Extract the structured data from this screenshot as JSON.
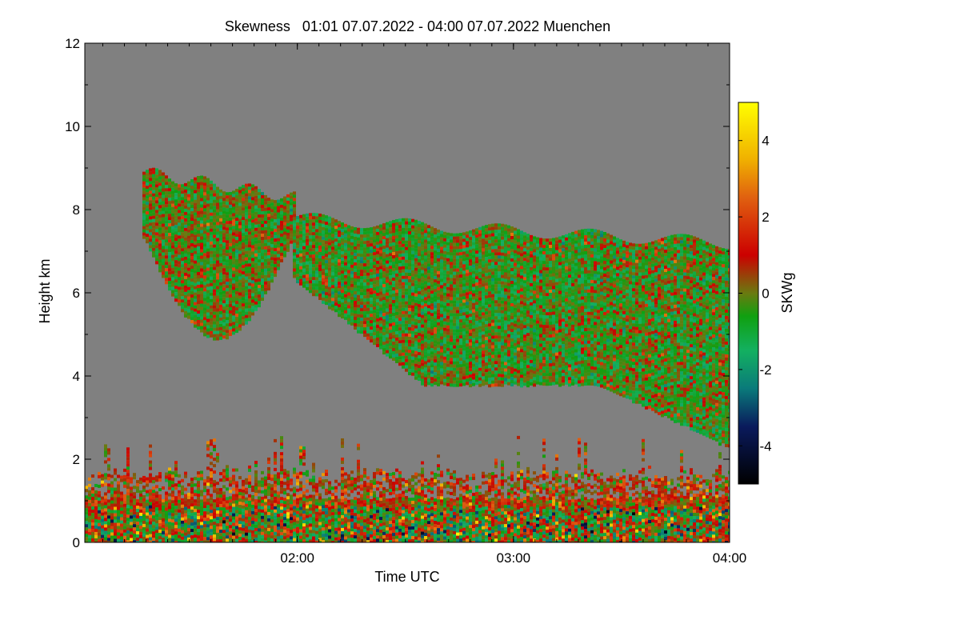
{
  "chart_data": {
    "type": "heatmap",
    "title": "Skewness   01:01 07.07.2022 - 04:00 07.07.2022 Muenchen",
    "xlabel": "Time UTC",
    "ylabel": "Height km",
    "x_range_hours": [
      1.0167,
      4.0
    ],
    "x_ticks": [
      {
        "value": 2.0,
        "label": "02:00"
      },
      {
        "value": 3.0,
        "label": "03:00"
      },
      {
        "value": 4.0,
        "label": "04:00"
      }
    ],
    "ylim": [
      0,
      12
    ],
    "y_ticks": [
      0,
      2,
      4,
      6,
      8,
      10,
      12
    ],
    "colorbar": {
      "label": "SKWg",
      "range": [
        -5,
        5
      ],
      "ticks": [
        -4,
        -2,
        0,
        2,
        4
      ],
      "stops": [
        {
          "value": -5,
          "color": "#000000"
        },
        {
          "value": -3.5,
          "color": "#0a1a5c"
        },
        {
          "value": -2.5,
          "color": "#0a7a7a"
        },
        {
          "value": -1.5,
          "color": "#13b060"
        },
        {
          "value": -0.6,
          "color": "#10a010"
        },
        {
          "value": 0,
          "color": "#6a7a10"
        },
        {
          "value": 1,
          "color": "#cc0000"
        },
        {
          "value": 2.5,
          "color": "#e06010"
        },
        {
          "value": 3.5,
          "color": "#f0b000"
        },
        {
          "value": 5,
          "color": "#ffff00"
        }
      ]
    },
    "background_color": "#808080",
    "regions": [
      {
        "name": "upper-cloud-left",
        "time_start": 1.28,
        "time_end": 1.98,
        "base_km": 5.2,
        "top_km": 8.9,
        "mean_skewness": -0.3
      },
      {
        "name": "upper-cloud-main",
        "time_start": 1.97,
        "time_end": 4.0,
        "base_km": 2.3,
        "top_km": 7.8,
        "mean_skewness": -0.5
      },
      {
        "name": "boundary-layer",
        "time_start": 1.0167,
        "time_end": 4.0,
        "base_km": 0.0,
        "top_km": 2.6,
        "mean_skewness": 0.5
      }
    ]
  }
}
